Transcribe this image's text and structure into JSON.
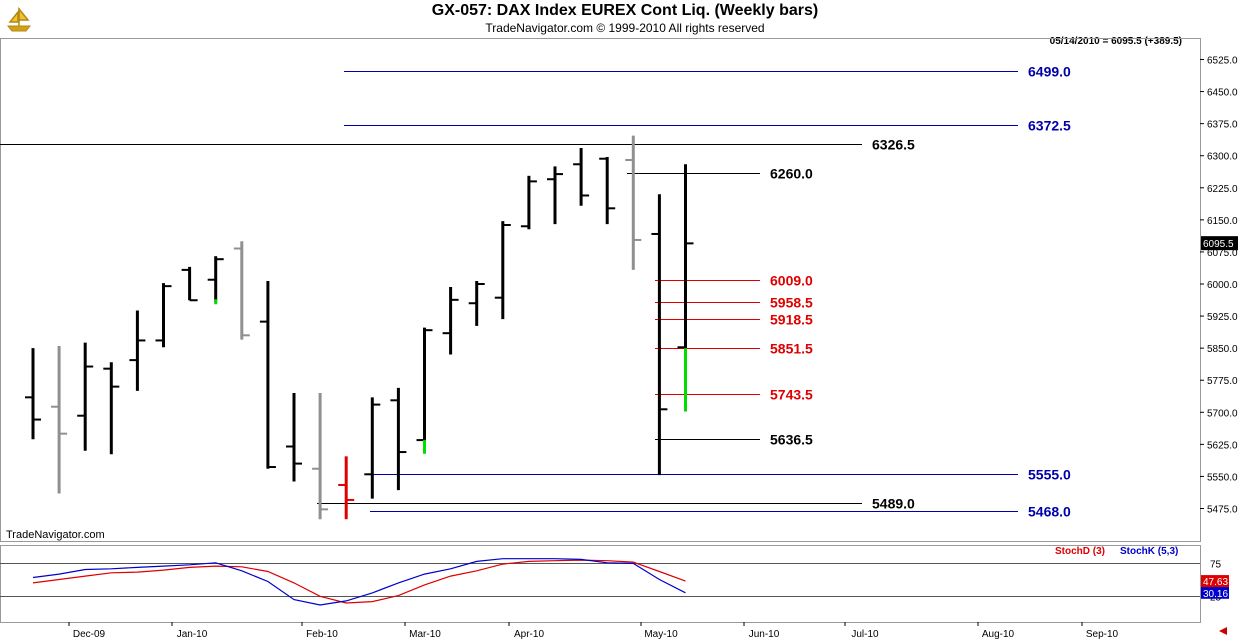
{
  "header": {
    "title": "GX-057:  DAX Index EUREX Cont Liq.  (Weekly bars)",
    "subtitle": "TradeNavigator.com © 1999-2010 All rights reserved",
    "readout": "05/14/2010 = 6095.5 (+389.5)",
    "watermark": "TradeNavigator.com",
    "logo_icon": "sailing-ship-icon"
  },
  "chart_data": [
    {
      "type": "ohlc",
      "ylim": [
        5450,
        6550
      ],
      "y_ticks": [
        "6525.0",
        "6450.0",
        "6375.0",
        "6300.0",
        "6225.0",
        "6150.0",
        "6075.0",
        "6000.0",
        "5925.0",
        "5850.0",
        "5775.0",
        "5700.0",
        "5625.0",
        "5550.0",
        "5475.0"
      ],
      "y_tick_values": [
        6525,
        6450,
        6375,
        6300,
        6225,
        6150,
        6075,
        6000,
        5925,
        5850,
        5775,
        5700,
        5625,
        5550,
        5475
      ],
      "x_tick_labels": [
        "Dec-09",
        "Jan-10",
        "Feb-10",
        "Mar-10",
        "Apr-10",
        "May-10",
        "Jun-10",
        "Jul-10",
        "Aug-10",
        "Sep-10"
      ],
      "last_price_label": "6095.5",
      "colors": {
        "black": "#000000",
        "gray": "#909090",
        "red": "#e00000",
        "green": "#00dd00"
      },
      "bars": [
        {
          "high": 5850,
          "low": 5637,
          "open": 5735,
          "close": 5683,
          "color": "black"
        },
        {
          "high": 5855,
          "low": 5510,
          "open": 5713,
          "close": 5650,
          "color": "gray"
        },
        {
          "high": 5863,
          "low": 5610,
          "open": 5692,
          "close": 5807,
          "color": "black"
        },
        {
          "high": 5817,
          "low": 5602,
          "open": 5802,
          "close": 5760,
          "color": "black"
        },
        {
          "high": 5938,
          "low": 5750,
          "open": 5822,
          "close": 5868,
          "color": "black"
        },
        {
          "high": 6002,
          "low": 5852,
          "open": 5868,
          "close": 5995,
          "color": "black"
        },
        {
          "high": 6040,
          "low": 5962,
          "open": 6033,
          "close": 5962,
          "color": "black"
        },
        {
          "high": 6065,
          "low": 5958,
          "open": 6010,
          "close": 6058,
          "color": "black"
        },
        {
          "high": 6100,
          "low": 5870,
          "open": 6083,
          "close": 5880,
          "color": "gray"
        },
        {
          "high": 6007,
          "low": 5568,
          "open": 5912,
          "close": 5572,
          "color": "black"
        },
        {
          "high": 5745,
          "low": 5538,
          "open": 5620,
          "close": 5580,
          "color": "black"
        },
        {
          "high": 5745,
          "low": 5450,
          "open": 5568,
          "close": 5473,
          "color": "gray"
        },
        {
          "high": 5597,
          "low": 5450,
          "open": 5530,
          "close": 5495,
          "color": "red"
        },
        {
          "high": 5735,
          "low": 5498,
          "open": 5555,
          "close": 5718,
          "color": "black"
        },
        {
          "high": 5757,
          "low": 5518,
          "open": 5728,
          "close": 5607,
          "color": "black"
        },
        {
          "high": 5898,
          "low": 5605,
          "open": 5635,
          "close": 5892,
          "color": "black"
        },
        {
          "high": 5993,
          "low": 5835,
          "open": 5885,
          "close": 5963,
          "color": "black"
        },
        {
          "high": 6007,
          "low": 5902,
          "open": 5955,
          "close": 6000,
          "color": "black"
        },
        {
          "high": 6147,
          "low": 5918,
          "open": 5968,
          "close": 6138,
          "color": "black"
        },
        {
          "high": 6253,
          "low": 6128,
          "open": 6135,
          "close": 6240,
          "color": "black"
        },
        {
          "high": 6275,
          "low": 6140,
          "open": 6245,
          "close": 6257,
          "color": "black"
        },
        {
          "high": 6318,
          "low": 6183,
          "open": 6280,
          "close": 6207,
          "color": "black"
        },
        {
          "high": 6297,
          "low": 6140,
          "open": 6293,
          "close": 6177,
          "color": "black"
        },
        {
          "high": 6347,
          "low": 6033,
          "open": 6290,
          "close": 6103,
          "color": "gray"
        },
        {
          "high": 6210,
          "low": 5553,
          "open": 6117,
          "close": 5707,
          "color": "black"
        },
        {
          "high": 6280,
          "low": 5702,
          "open": 5852,
          "close": 6095,
          "color": "black"
        }
      ],
      "colored_ticks": [
        {
          "bar": 7,
          "value": 5962,
          "color": "green"
        },
        {
          "bar": 15,
          "value": 5635,
          "color": "green",
          "span_to": 5603
        },
        {
          "bar": 25,
          "value": 5850,
          "color": "green",
          "span_to": 5702
        }
      ],
      "levels": [
        {
          "value": 6499.0,
          "label": "6499.0",
          "color": "#0000aa"
        },
        {
          "value": 6372.5,
          "label": "6372.5",
          "color": "#0000aa"
        },
        {
          "value": 6326.5,
          "label": "6326.5",
          "color": "#000000"
        },
        {
          "value": 6260.0,
          "label": "6260.0",
          "color": "#000000"
        },
        {
          "value": 6009.0,
          "label": "6009.0",
          "color": "#e00000"
        },
        {
          "value": 5958.5,
          "label": "5958.5",
          "color": "#e00000"
        },
        {
          "value": 5918.5,
          "label": "5918.5",
          "color": "#e00000"
        },
        {
          "value": 5851.5,
          "label": "5851.5",
          "color": "#e00000"
        },
        {
          "value": 5743.5,
          "label": "5743.5",
          "color": "#e00000"
        },
        {
          "value": 5636.5,
          "label": "5636.5",
          "color": "#000000"
        },
        {
          "value": 5555.0,
          "label": "5555.0",
          "color": "#0000aa"
        },
        {
          "value": 5489.0,
          "label": "5489.0",
          "color": "#000000"
        },
        {
          "value": 5468.0,
          "label": "5468.0",
          "color": "#0000aa"
        }
      ]
    },
    {
      "type": "line",
      "ylim": [
        0,
        100
      ],
      "y_ticks": [
        "75",
        "25"
      ],
      "y_tick_values": [
        75,
        25
      ],
      "last_values": [
        "47.63",
        "30.16"
      ],
      "series": [
        {
          "name": "StochD (3)",
          "color": "#dd0000",
          "values": [
            45,
            50,
            55,
            60,
            61,
            64,
            68,
            70,
            69,
            62,
            45,
            25,
            15,
            17,
            26,
            42,
            55,
            63,
            73,
            77,
            78,
            79,
            78,
            76,
            62,
            47.63
          ]
        },
        {
          "name": "StochK (5,3)",
          "color": "#0000cc",
          "values": [
            53,
            58,
            65,
            66,
            68,
            70,
            72,
            75,
            63,
            47,
            20,
            12,
            18,
            30,
            45,
            58,
            66,
            77,
            81,
            81,
            81,
            80,
            75,
            74,
            50,
            30.16
          ]
        }
      ]
    }
  ]
}
